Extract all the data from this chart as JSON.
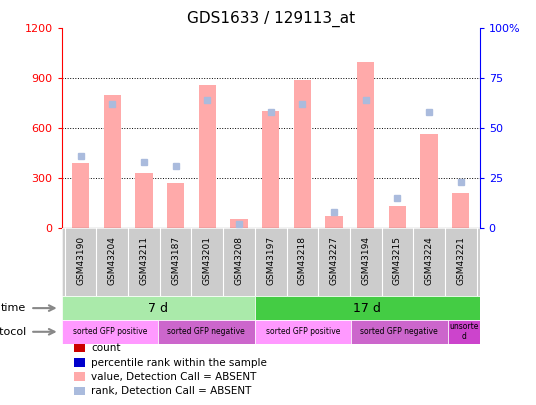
{
  "title": "GDS1633 / 129113_at",
  "samples": [
    "GSM43190",
    "GSM43204",
    "GSM43211",
    "GSM43187",
    "GSM43201",
    "GSM43208",
    "GSM43197",
    "GSM43218",
    "GSM43227",
    "GSM43194",
    "GSM43215",
    "GSM43224",
    "GSM43221"
  ],
  "bar_values": [
    390,
    800,
    330,
    270,
    860,
    50,
    700,
    890,
    70,
    1000,
    130,
    565,
    210
  ],
  "rank_values": [
    36,
    62,
    33,
    31,
    64,
    2,
    58,
    62,
    8,
    64,
    15,
    58,
    23
  ],
  "ylim_left": [
    0,
    1200
  ],
  "ylim_right": [
    0,
    100
  ],
  "yticks_left": [
    0,
    300,
    600,
    900,
    1200
  ],
  "ytick_labels_left": [
    "0",
    "300",
    "600",
    "900",
    "1200"
  ],
  "yticks_right": [
    0,
    25,
    50,
    75,
    100
  ],
  "ytick_labels_right": [
    "0",
    "25",
    "50",
    "75",
    "100%"
  ],
  "time_groups": [
    {
      "label": "7 d",
      "start": 0,
      "end": 6,
      "color": "#aaeaaa"
    },
    {
      "label": "17 d",
      "start": 6,
      "end": 13,
      "color": "#44cc44"
    }
  ],
  "protocol_groups": [
    {
      "label": "sorted GFP positive",
      "start": 0,
      "end": 3,
      "color": "#ff99ff"
    },
    {
      "label": "sorted GFP negative",
      "start": 3,
      "end": 6,
      "color": "#cc66cc"
    },
    {
      "label": "sorted GFP positive",
      "start": 6,
      "end": 9,
      "color": "#ff99ff"
    },
    {
      "label": "sorted GFP negative",
      "start": 9,
      "end": 12,
      "color": "#cc66cc"
    },
    {
      "label": "unsorte\nd",
      "start": 12,
      "end": 13,
      "color": "#cc44cc"
    }
  ],
  "bar_color": "#ffaaaa",
  "rank_color": "#aabbdd",
  "bar_width": 0.55,
  "bg_color": "#ffffff",
  "label_bg_color": "#cccccc",
  "legend_items": [
    {
      "color": "#cc0000",
      "marker": "s",
      "label": "count"
    },
    {
      "color": "#0000cc",
      "marker": "s",
      "label": "percentile rank within the sample"
    },
    {
      "color": "#ffaaaa",
      "marker": "s",
      "label": "value, Detection Call = ABSENT"
    },
    {
      "color": "#aabbdd",
      "marker": "s",
      "label": "rank, Detection Call = ABSENT"
    }
  ]
}
